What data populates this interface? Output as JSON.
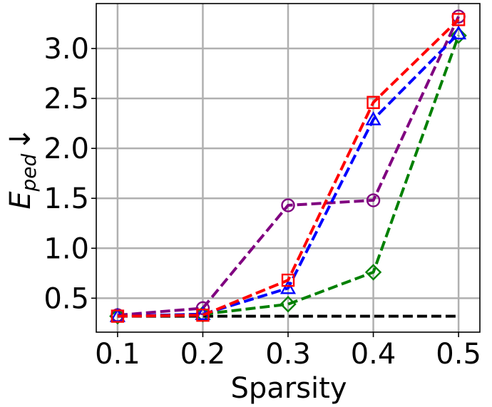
{
  "chart_data": {
    "type": "line",
    "xlabel": "Sparsity",
    "ylabel_main": "E",
    "ylabel_sub": "ped",
    "ylabel_arrow": "↓",
    "x": [
      0.1,
      0.2,
      0.3,
      0.4,
      0.5
    ],
    "x_tick_labels": [
      "0.1",
      "0.2",
      "0.3",
      "0.4",
      "0.5"
    ],
    "y_ticks": [
      0.5,
      1.0,
      1.5,
      2.0,
      2.5,
      3.0
    ],
    "y_tick_labels": [
      "0.5",
      "1.0",
      "1.5",
      "2.0",
      "2.5",
      "3.0"
    ],
    "xlim": [
      0.075,
      0.525
    ],
    "ylim": [
      0.16,
      3.45
    ],
    "grid": true,
    "series": [
      {
        "color": "#ff0000",
        "marker": "square",
        "values": [
          0.32,
          0.33,
          0.68,
          2.46,
          3.29
        ]
      },
      {
        "color": "#0000ff",
        "marker": "triangle",
        "values": [
          0.32,
          0.34,
          0.6,
          2.29,
          3.15
        ]
      },
      {
        "color": "#800080",
        "marker": "circle",
        "values": [
          0.33,
          0.4,
          1.43,
          1.48,
          3.32
        ]
      },
      {
        "color": "#008000",
        "marker": "diamond",
        "values": [
          0.32,
          0.34,
          0.44,
          0.76,
          3.13
        ]
      },
      {
        "color": "#000000",
        "marker": "none",
        "values": [
          0.32,
          0.32,
          0.32,
          0.32,
          0.32
        ]
      }
    ]
  }
}
